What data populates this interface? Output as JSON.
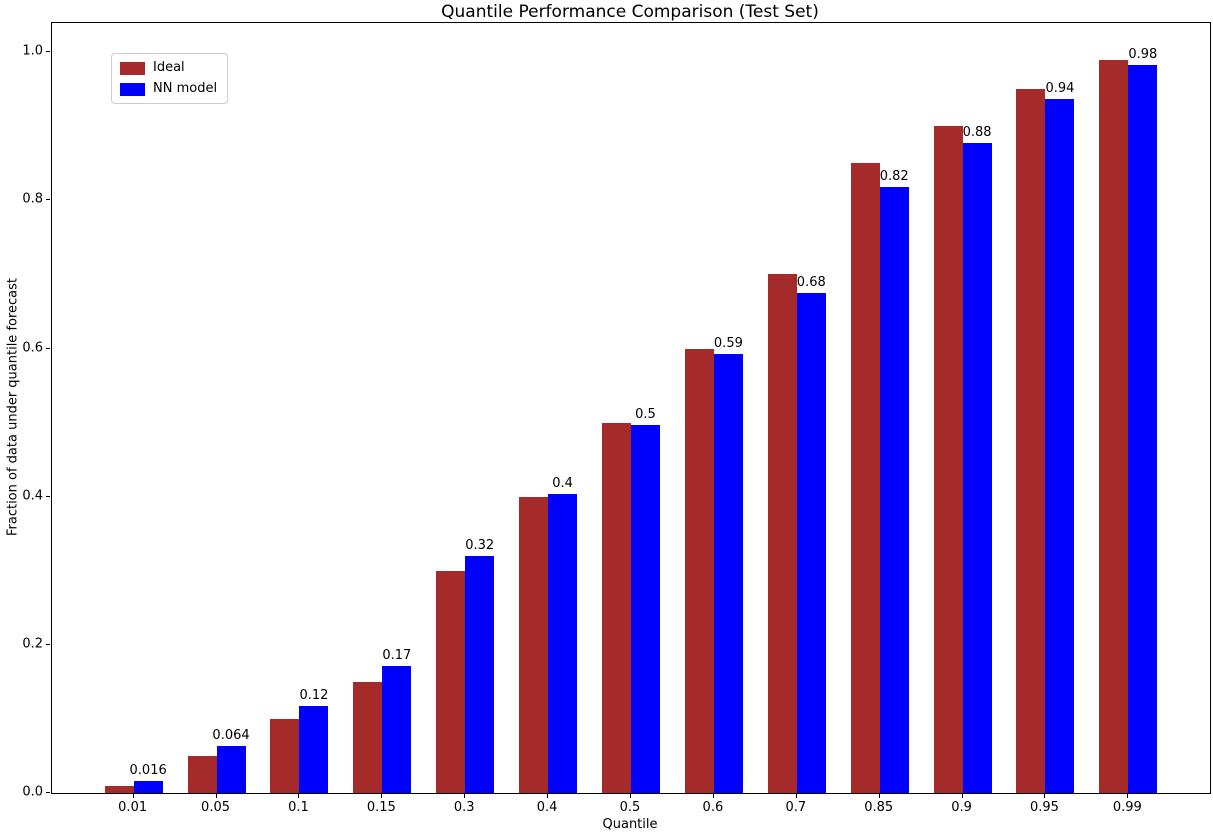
{
  "chart_data": {
    "type": "bar",
    "title": "Quantile Performance Comparison (Test Set)",
    "xlabel": "Quantile",
    "ylabel": "Fraction of data under quantile forecast",
    "categories": [
      "0.01",
      "0.05",
      "0.1",
      "0.15",
      "0.3",
      "0.4",
      "0.5",
      "0.6",
      "0.7",
      "0.85",
      "0.9",
      "0.95",
      "0.99"
    ],
    "series": [
      {
        "name": "Ideal",
        "color": "#a52a2a",
        "values": [
          0.01,
          0.05,
          0.1,
          0.15,
          0.3,
          0.4,
          0.5,
          0.6,
          0.7,
          0.85,
          0.9,
          0.95,
          0.99
        ]
      },
      {
        "name": "NN model",
        "color": "#0000ff",
        "values": [
          0.016,
          0.064,
          0.117,
          0.171,
          0.32,
          0.403,
          0.497,
          0.592,
          0.675,
          0.818,
          0.878,
          0.937,
          0.983
        ]
      }
    ],
    "bar_value_labels": [
      "0.016",
      "0.064",
      "0.12",
      "0.17",
      "0.32",
      "0.4",
      "0.5",
      "0.59",
      "0.68",
      "0.82",
      "0.88",
      "0.94",
      "0.98"
    ],
    "ytick_labels": [
      "0.0",
      "0.2",
      "0.4",
      "0.6",
      "0.8",
      "1.0"
    ],
    "ylim": [
      0,
      1.0395
    ],
    "bar_width_units": 0.35,
    "legend": {
      "position": "upper left",
      "entries": [
        "Ideal",
        "NN model"
      ]
    },
    "grid": false,
    "colors": {
      "ideal": "#a52a2a",
      "nn_model": "#0000ff",
      "axis": "#000000",
      "background": "#ffffff"
    }
  }
}
